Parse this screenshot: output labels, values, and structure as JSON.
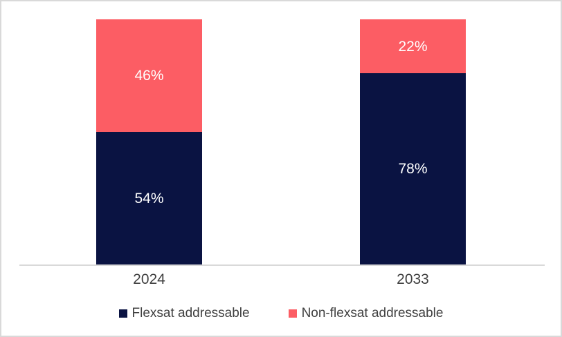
{
  "chart_data": {
    "type": "bar",
    "stacked": true,
    "orientation": "vertical",
    "categories": [
      "2024",
      "2033"
    ],
    "series": [
      {
        "name": "Flexsat addressable",
        "color": "#0a1342",
        "values": [
          54,
          78
        ]
      },
      {
        "name": "Non-flexsat addressable",
        "color": "#fc5d64",
        "values": [
          46,
          22
        ]
      }
    ],
    "value_label_suffix": "%",
    "value_labels": {
      "2024": {
        "Flexsat addressable": "54%",
        "Non-flexsat addressable": "46%"
      },
      "2033": {
        "Flexsat addressable": "78%",
        "Non-flexsat addressable": "22%"
      }
    },
    "title": "",
    "xlabel": "",
    "ylabel": "",
    "ylim": [
      0,
      100
    ],
    "grid": false,
    "legend_position": "bottom",
    "colors": {
      "value_label_text": "#ffffff",
      "category_label_text": "#404040",
      "legend_text": "#404040",
      "axis_line": "#d9d9d9",
      "frame_border": "#d9d9d9",
      "background": "#ffffff"
    }
  }
}
